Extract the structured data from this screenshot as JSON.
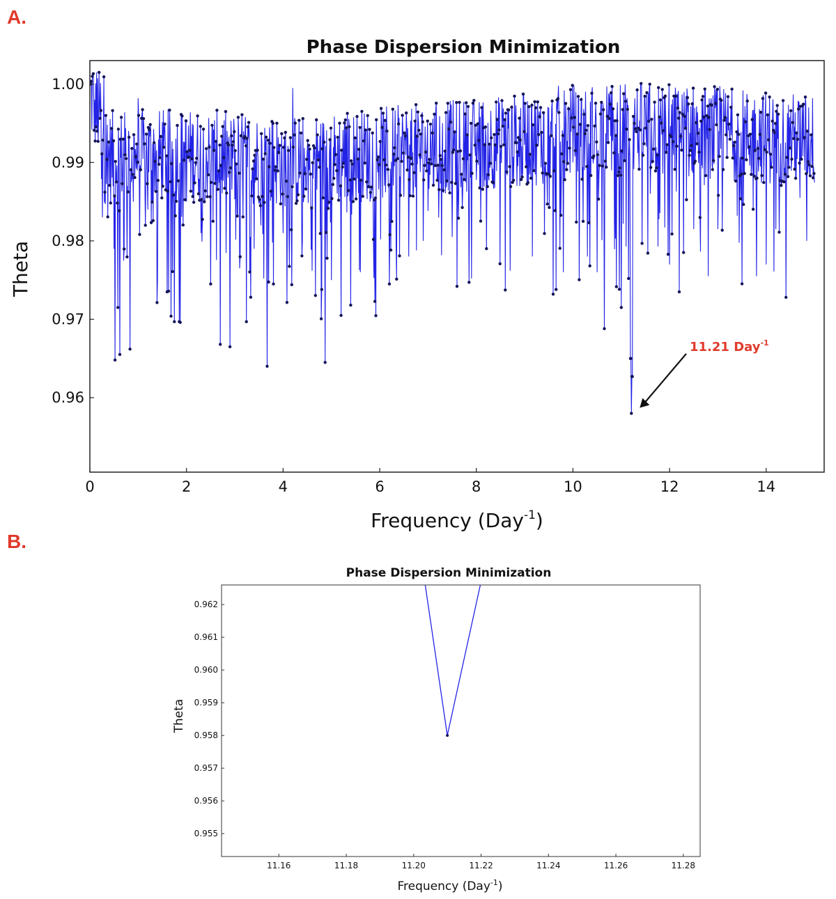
{
  "panels": {
    "a_label": "A.",
    "b_label": "B."
  },
  "colors": {
    "line": "#2323e6",
    "marker": "#14145a",
    "panel_label": "#e03a2c",
    "annotation": "#e03a2c",
    "arrow": "#111111"
  },
  "chart_data": [
    {
      "type": "line",
      "title": "Phase Dispersion Minimization",
      "xlabel": "Frequency (Day",
      "xlabel_superscript": "-1",
      "xlabel_suffix": ")",
      "ylabel": "Theta",
      "xlim": [
        0,
        15.2
      ],
      "ylim": [
        0.9505,
        1.003
      ],
      "x_ticks": [
        0,
        2,
        4,
        6,
        8,
        10,
        12,
        14
      ],
      "x_tick_labels": [
        "0",
        "2",
        "4",
        "6",
        "8",
        "10",
        "12",
        "14"
      ],
      "y_ticks": [
        0.96,
        0.97,
        0.98,
        0.99,
        1.0
      ],
      "y_tick_labels": [
        "0.96",
        "0.97",
        "0.98",
        "0.99",
        "1.00"
      ],
      "grid": false,
      "legend": "none",
      "series": [
        {
          "x_start": 0.01,
          "x_step": 0.01,
          "x_end": 15.0,
          "sampled_points": [
            [
              0.0,
              1.0
            ],
            [
              0.05,
              1.001
            ],
            [
              0.1,
              0.998
            ],
            [
              0.15,
              0.994
            ],
            [
              0.2,
              0.997
            ],
            [
              0.26,
              0.983
            ],
            [
              0.33,
              0.996
            ],
            [
              0.4,
              0.991
            ],
            [
              0.5,
              0.979
            ],
            [
              0.52,
              0.9648
            ],
            [
              0.58,
              0.9715
            ],
            [
              0.62,
              0.9655
            ],
            [
              0.7,
              0.9775
            ],
            [
              0.78,
              0.987
            ],
            [
              0.83,
              0.9662
            ],
            [
              0.9,
              0.985
            ],
            [
              1.0,
              0.9982
            ],
            [
              1.2,
              0.984
            ],
            [
              1.4,
              0.975
            ],
            [
              1.6,
              0.9735
            ],
            [
              1.75,
              0.9697
            ],
            [
              1.85,
              0.9697
            ],
            [
              2.0,
              0.985
            ],
            [
              2.3,
              0.981
            ],
            [
              2.5,
              0.9745
            ],
            [
              2.7,
              0.9668
            ],
            [
              2.9,
              0.9665
            ],
            [
              3.1,
              0.9765
            ],
            [
              3.4,
              0.979
            ],
            [
              3.6,
              0.9752
            ],
            [
              3.67,
              0.964
            ],
            [
              3.8,
              0.9745
            ],
            [
              4.0,
              0.981
            ],
            [
              4.2,
              0.9995
            ],
            [
              4.4,
              0.98
            ],
            [
              4.6,
              0.9762
            ],
            [
              4.8,
              0.9738
            ],
            [
              4.87,
              0.9645
            ],
            [
              5.0,
              0.975
            ],
            [
              5.2,
              0.9705
            ],
            [
              5.4,
              0.9718
            ],
            [
              5.6,
              0.976
            ],
            [
              5.8,
              0.985
            ],
            [
              6.0,
              0.991
            ],
            [
              6.2,
              0.9745
            ],
            [
              6.6,
              0.978
            ],
            [
              6.9,
              0.98
            ],
            [
              7.2,
              0.988
            ],
            [
              7.5,
              0.9805
            ],
            [
              7.6,
              0.9742
            ],
            [
              7.9,
              0.9752
            ],
            [
              8.1,
              0.989
            ],
            [
              8.5,
              0.991
            ],
            [
              8.7,
              0.9762
            ],
            [
              8.9,
              0.987
            ],
            [
              9.2,
              0.994
            ],
            [
              9.5,
              0.997
            ],
            [
              9.65,
              0.9738
            ],
            [
              9.8,
              0.976
            ],
            [
              10.0,
              0.99
            ],
            [
              10.3,
              0.978
            ],
            [
              10.5,
              0.976
            ],
            [
              10.65,
              0.9688
            ],
            [
              10.8,
              0.989
            ],
            [
              11.0,
              0.9715
            ],
            [
              11.15,
              0.9752
            ],
            [
              11.19,
              0.965
            ],
            [
              11.21,
              0.958
            ],
            [
              11.23,
              0.9627
            ],
            [
              11.3,
              0.9945
            ],
            [
              11.6,
              0.986
            ],
            [
              12.0,
              0.977
            ],
            [
              12.2,
              0.9735
            ],
            [
              12.5,
              0.9815
            ],
            [
              12.8,
              0.9755
            ],
            [
              13.0,
              0.9815
            ],
            [
              13.4,
              0.9832
            ],
            [
              13.8,
              0.9755
            ],
            [
              14.0,
              0.977
            ],
            [
              14.2,
              0.9815
            ],
            [
              14.5,
              0.9945
            ],
            [
              14.7,
              0.9855
            ],
            [
              14.8,
              0.989
            ],
            [
              14.95,
              0.9895
            ]
          ],
          "minimum": [
            11.21,
            0.958
          ]
        }
      ],
      "annotations": [
        {
          "text": "11.21 Day",
          "superscript": "-1",
          "points_to": [
            11.21,
            0.958
          ]
        }
      ]
    },
    {
      "type": "line",
      "title": "Phase Dispersion Minimization",
      "xlabel": "Frequency (Day",
      "xlabel_superscript": "-1",
      "xlabel_suffix": ")",
      "ylabel": "Theta",
      "xlim": [
        11.143,
        11.285
      ],
      "ylim": [
        0.9543,
        0.9626
      ],
      "x_ticks": [
        11.16,
        11.18,
        11.2,
        11.22,
        11.24,
        11.26,
        11.28
      ],
      "x_tick_labels": [
        "11.16",
        "11.18",
        "11.20",
        "11.22",
        "11.24",
        "11.26",
        "11.28"
      ],
      "y_ticks": [
        0.955,
        0.956,
        0.957,
        0.958,
        0.959,
        0.96,
        0.961,
        0.962
      ],
      "y_tick_labels": [
        "0.955",
        "0.956",
        "0.957",
        "0.958",
        "0.959",
        "0.960",
        "0.961",
        "0.962"
      ],
      "grid": false,
      "legend": "none",
      "series": [
        {
          "x": [
            11.2,
            11.21,
            11.22,
            11.23
          ],
          "y": [
            0.965,
            0.958,
            0.9627,
            0.968
          ]
        }
      ]
    }
  ]
}
